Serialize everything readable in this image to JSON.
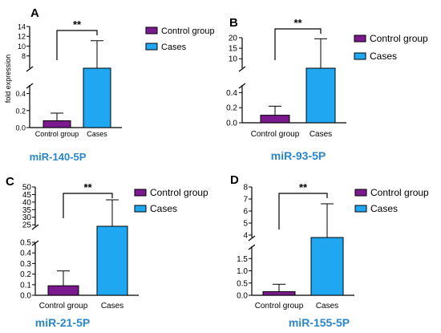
{
  "chart_data": [
    {
      "type": "bar",
      "panel_label": "A",
      "caption": "miR-140-5P",
      "ylabel": "fold expression",
      "categories": [
        "Control group",
        "Cases"
      ],
      "series": [
        {
          "values": [
            0.08,
            5.5
          ],
          "error_upper": [
            0.17,
            11.1
          ]
        }
      ],
      "ylim_lower": [
        0,
        0.5
      ],
      "ylim_upper": [
        5.5,
        14
      ],
      "yticks_lower": [
        "0.0",
        "0.2",
        "0.4"
      ],
      "yticks_upper": [
        "8",
        "10",
        "12",
        "14"
      ],
      "significance": "**",
      "legend": [
        "Control group",
        "Cases"
      ],
      "legend_position": "right"
    },
    {
      "type": "bar",
      "panel_label": "B",
      "caption": "miR-93-5P",
      "ylabel": "",
      "categories": [
        "Control group",
        "Cases"
      ],
      "series": [
        {
          "values": [
            0.1,
            5.5
          ],
          "error_upper": [
            0.22,
            19.5
          ]
        }
      ],
      "ylim_lower": [
        0,
        0.5
      ],
      "ylim_upper": [
        5.5,
        20
      ],
      "yticks_lower": [
        "0.0",
        "0.2",
        "0.4"
      ],
      "yticks_upper": [
        "10",
        "15",
        "20"
      ],
      "significance": "**",
      "legend": [
        "Control group",
        "Cases"
      ],
      "legend_position": "right"
    },
    {
      "type": "bar",
      "panel_label": "C",
      "caption": "miR-21-5P",
      "ylabel": "",
      "categories": [
        "Control group",
        "Cases"
      ],
      "series": [
        {
          "values": [
            0.09,
            24
          ],
          "error_upper": [
            0.23,
            41.5
          ]
        }
      ],
      "ylim_lower": [
        0,
        0.5
      ],
      "ylim_upper": [
        24,
        50
      ],
      "yticks_lower": [
        "0.0",
        "0.1",
        "0.2",
        "0.3",
        "0.4",
        "0.5"
      ],
      "yticks_upper": [
        "25",
        "30",
        "35",
        "40",
        "45",
        "50"
      ],
      "significance": "**",
      "legend": [
        "Control group",
        "Cases"
      ],
      "legend_position": "right"
    },
    {
      "type": "bar",
      "panel_label": "D",
      "caption": "miR-155-5P",
      "ylabel": "",
      "categories": [
        "Control group",
        "Cases"
      ],
      "series": [
        {
          "values": [
            0.15,
            3.8
          ],
          "error_upper": [
            0.45,
            6.6
          ]
        }
      ],
      "ylim_lower": [
        0,
        2
      ],
      "ylim_upper": [
        3.8,
        8
      ],
      "yticks_lower": [
        "0.0",
        "0.5",
        "1.0",
        "1.5"
      ],
      "yticks_upper": [
        "4",
        "5",
        "6",
        "7",
        "8"
      ],
      "significance": "**",
      "legend": [
        "Control group",
        "Cases"
      ],
      "legend_position": "right"
    }
  ],
  "colors": {
    "control": "#7b1a8f",
    "cases": "#1fa7f2",
    "caption": "#2a86c8",
    "axis": "#000000"
  }
}
